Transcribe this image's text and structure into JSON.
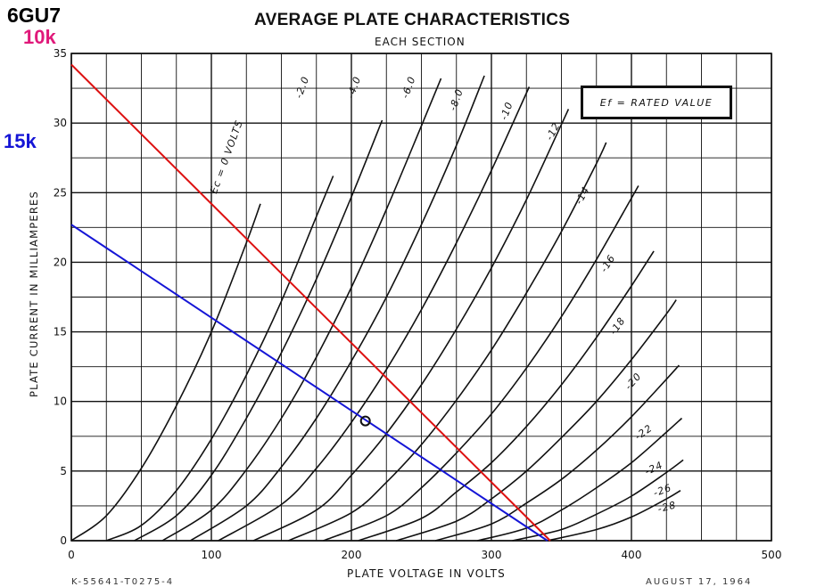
{
  "header": {
    "tube_type": "6GU7",
    "load_10k": "10k",
    "load_15k": "15k"
  },
  "legend_box": {
    "text": "Ef = RATED VALUE"
  },
  "footer": {
    "left": "K-55641-T0275-4",
    "right": "AUGUST 17, 1964"
  },
  "colors": {
    "load_10k": "#e0197a",
    "line_10k": "#dd1111",
    "load_15k": "#1515d6",
    "line_15k": "#1515d6",
    "grid": "#111111",
    "curves": "#111111"
  },
  "chart_data": {
    "type": "line",
    "title": "AVERAGE PLATE CHARACTERISTICS",
    "subtitle": "EACH SECTION",
    "xlabel": "PLATE VOLTAGE IN VOLTS",
    "ylabel": "PLATE CURRENT IN MILLIAMPERES",
    "xlim": [
      0,
      500
    ],
    "ylim": [
      0,
      35
    ],
    "x_ticks": [
      0,
      100,
      200,
      300,
      400,
      500
    ],
    "y_ticks": [
      0,
      5,
      10,
      15,
      20,
      25,
      30,
      35
    ],
    "grid": true,
    "x_minor_step": 25,
    "y_minor_step": 2.5,
    "series": [
      {
        "name": "Ec = 0 VOLTS",
        "x": [
          0,
          25,
          50,
          75,
          100,
          125,
          135
        ],
        "y": [
          0,
          1.8,
          5.2,
          9.7,
          15,
          21.4,
          24.2
        ]
      },
      {
        "name": "-2.0",
        "x": [
          25,
          50,
          75,
          100,
          125,
          150,
          175,
          187
        ],
        "y": [
          0,
          1.1,
          3.6,
          7.3,
          11.9,
          17.2,
          23.3,
          26.2
        ]
      },
      {
        "name": "-4.0",
        "x": [
          45,
          75,
          100,
          125,
          150,
          175,
          200,
          222
        ],
        "y": [
          0,
          1.8,
          4.7,
          8.8,
          13.5,
          18.8,
          24.7,
          30.2
        ]
      },
      {
        "name": "-6.0",
        "x": [
          65,
          100,
          125,
          150,
          175,
          200,
          225,
          250,
          264
        ],
        "y": [
          0,
          2.2,
          5.1,
          8.8,
          13.2,
          18.2,
          23.8,
          29.8,
          33.2
        ]
      },
      {
        "name": "-8.0",
        "x": [
          85,
          125,
          150,
          175,
          200,
          225,
          250,
          275,
          295
        ],
        "y": [
          0,
          2.5,
          5.3,
          8.8,
          12.9,
          17.5,
          22.7,
          28.4,
          33.4
        ]
      },
      {
        "name": "-10",
        "x": [
          105,
          150,
          175,
          200,
          225,
          250,
          275,
          300,
          327
        ],
        "y": [
          0,
          2.6,
          5.2,
          8.5,
          12.3,
          16.6,
          21.4,
          26.6,
          32.6
        ]
      },
      {
        "name": "-12",
        "x": [
          130,
          175,
          200,
          225,
          250,
          275,
          300,
          325,
          350,
          355
        ],
        "y": [
          0,
          2.2,
          4.7,
          7.7,
          11.2,
          15.2,
          19.6,
          24.5,
          29.9,
          31
        ]
      },
      {
        "name": "-14",
        "x": [
          155,
          200,
          225,
          250,
          275,
          300,
          325,
          350,
          375,
          382
        ],
        "y": [
          0,
          2.0,
          4.2,
          6.9,
          10.1,
          13.7,
          17.8,
          22.2,
          27.1,
          28.6
        ]
      },
      {
        "name": "-16",
        "x": [
          180,
          225,
          250,
          275,
          300,
          325,
          350,
          375,
          400,
          405
        ],
        "y": [
          0,
          1.8,
          3.8,
          6.3,
          9.1,
          12.4,
          16.1,
          20.2,
          24.6,
          25.5
        ]
      },
      {
        "name": "-18",
        "x": [
          205,
          250,
          275,
          300,
          325,
          350,
          375,
          400,
          416
        ],
        "y": [
          0,
          1.6,
          3.5,
          5.6,
          8.2,
          11.2,
          14.6,
          18.3,
          20.8
        ]
      },
      {
        "name": "-20",
        "x": [
          232,
          275,
          300,
          325,
          350,
          375,
          400,
          425,
          432
        ],
        "y": [
          0,
          1.4,
          3.0,
          5.0,
          7.4,
          10.0,
          13.0,
          16.3,
          17.3
        ]
      },
      {
        "name": "-22",
        "x": [
          260,
          300,
          325,
          350,
          375,
          400,
          425,
          434
        ],
        "y": [
          0,
          1.2,
          2.7,
          4.4,
          6.5,
          8.9,
          11.6,
          12.6
        ]
      },
      {
        "name": "-24",
        "x": [
          290,
          325,
          350,
          375,
          400,
          425,
          436
        ],
        "y": [
          0,
          0.9,
          2.2,
          3.8,
          5.6,
          7.8,
          8.8
        ]
      },
      {
        "name": "-26",
        "x": [
          315,
          350,
          375,
          400,
          425,
          437
        ],
        "y": [
          0,
          0.8,
          1.9,
          3.2,
          4.9,
          5.8
        ]
      },
      {
        "name": "-28",
        "x": [
          340,
          375,
          400,
          425,
          435
        ],
        "y": [
          0,
          0.8,
          1.7,
          3.0,
          3.6
        ]
      }
    ],
    "load_lines": [
      {
        "name": "10k",
        "x": [
          0,
          342
        ],
        "y": [
          34.2,
          0
        ]
      },
      {
        "name": "15k",
        "x": [
          0,
          340
        ],
        "y": [
          22.7,
          0
        ]
      }
    ],
    "operating_point": {
      "x": 210,
      "y": 8.6
    },
    "curve_labels": [
      {
        "series": "Ec = 0 VOLTS",
        "x": 113,
        "y": 27.5,
        "angle": -70
      },
      {
        "series": "-2.0",
        "x": 167,
        "y": 32.5,
        "angle": -70
      },
      {
        "series": "-4.0",
        "x": 204,
        "y": 32.5,
        "angle": -70
      },
      {
        "series": "-6.0",
        "x": 243,
        "y": 32.5,
        "angle": -70
      },
      {
        "series": "-8.0",
        "x": 277,
        "y": 31.6,
        "angle": -70
      },
      {
        "series": "-10",
        "x": 313,
        "y": 30.8,
        "angle": -70
      },
      {
        "series": "-12",
        "x": 346,
        "y": 29.3,
        "angle": -62
      },
      {
        "series": "-14",
        "x": 367,
        "y": 24.7,
        "angle": -62
      },
      {
        "series": "-16",
        "x": 385,
        "y": 19.8,
        "angle": -58
      },
      {
        "series": "-18",
        "x": 392,
        "y": 15.3,
        "angle": -55
      },
      {
        "series": "-20",
        "x": 403,
        "y": 11.3,
        "angle": -48
      },
      {
        "series": "-22",
        "x": 410,
        "y": 7.6,
        "angle": -35
      },
      {
        "series": "-24",
        "x": 417,
        "y": 5.0,
        "angle": -25
      },
      {
        "series": "-26",
        "x": 423,
        "y": 3.4,
        "angle": -20
      },
      {
        "series": "-28",
        "x": 426,
        "y": 2.2,
        "angle": -15
      }
    ]
  }
}
